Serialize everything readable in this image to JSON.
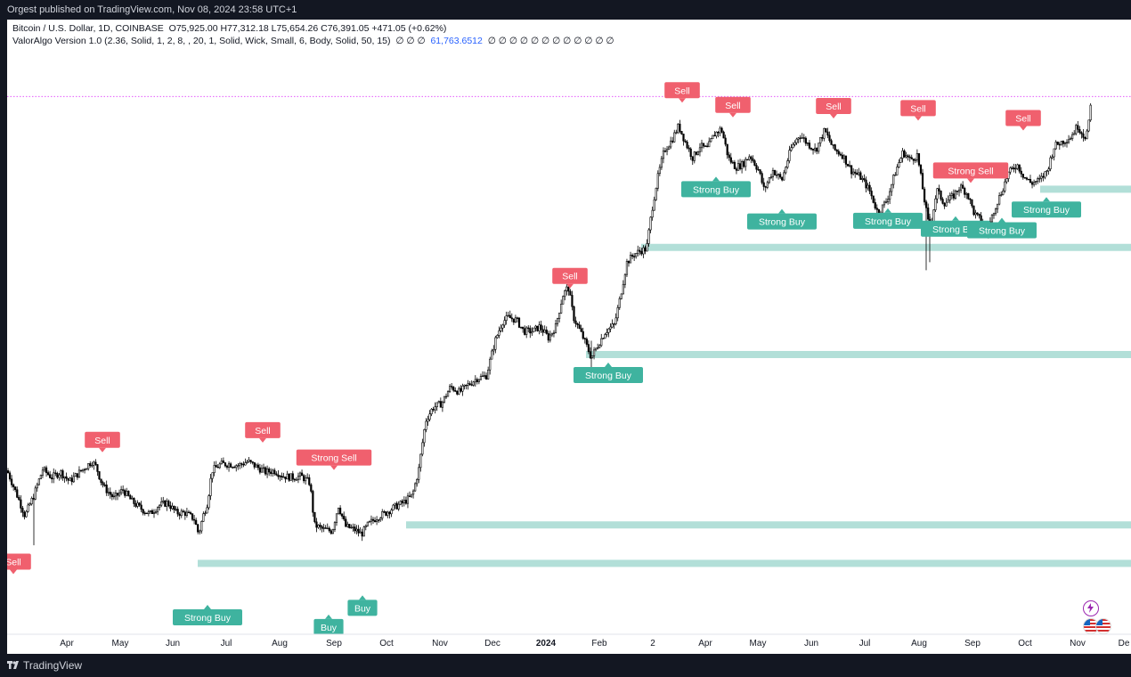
{
  "header": {
    "published": "Orgest published on TradingView.com, Nov 08, 2024 23:58 UTC+1"
  },
  "legend": {
    "symbol": "Bitcoin / U.S. Dollar, 1D, COINBASE",
    "ohlc": "O75,925.00  H77,312.18  L75,654.26  C76,391.05  +471.05 (+0.62%)",
    "indicator": "ValorAlgo Version 1.0 (2.36, Solid, 1, 2, 8, , 20, 1, Solid, Wick, Small, 6, Body, Solid, 50, 15)",
    "null_prefix": "∅ ∅ ∅",
    "indicator_value": "61,763.6512",
    "null_suffix": "∅ ∅ ∅ ∅ ∅ ∅ ∅ ∅ ∅ ∅ ∅ ∅"
  },
  "footer": {
    "brand": "TradingView"
  },
  "colors": {
    "up_candle": "#000000",
    "sell": "#f0606e",
    "buy": "#3fb39f",
    "zone": "#b2dfd8",
    "price_line": "#e040fb"
  },
  "icons": {
    "bolt": "lightning-icon",
    "flag": "us-flag-icon"
  },
  "chart_data": {
    "type": "candlestick",
    "x_ticks": [
      "Apr",
      "May",
      "Jun",
      "Jul",
      "Aug",
      "Sep",
      "Oct",
      "Nov",
      "Dec",
      "2024",
      "Feb",
      "2",
      "Apr",
      "May",
      "Jun",
      "Jul",
      "Aug",
      "Sep",
      "Oct",
      "Nov",
      "De"
    ],
    "x_tick_bold": "2024",
    "series_path": [
      [
        0,
        30000
      ],
      [
        20,
        26800
      ],
      [
        30,
        28200
      ],
      [
        40,
        30100
      ],
      [
        50,
        29500
      ],
      [
        60,
        29900
      ],
      [
        70,
        29200
      ],
      [
        80,
        29800
      ],
      [
        90,
        30400
      ],
      [
        95,
        30700
      ],
      [
        100,
        30300
      ],
      [
        105,
        29300
      ],
      [
        110,
        28700
      ],
      [
        120,
        28000
      ],
      [
        130,
        28600
      ],
      [
        140,
        27800
      ],
      [
        150,
        27300
      ],
      [
        160,
        26900
      ],
      [
        170,
        27500
      ],
      [
        180,
        27700
      ],
      [
        190,
        27000
      ],
      [
        200,
        27000
      ],
      [
        210,
        26600
      ],
      [
        215,
        25600
      ],
      [
        220,
        26800
      ],
      [
        225,
        27700
      ],
      [
        230,
        30000
      ],
      [
        240,
        30500
      ],
      [
        250,
        30500
      ],
      [
        260,
        30400
      ],
      [
        270,
        30700
      ],
      [
        280,
        30300
      ],
      [
        290,
        29900
      ],
      [
        300,
        30000
      ],
      [
        310,
        29600
      ],
      [
        320,
        29500
      ],
      [
        330,
        29600
      ],
      [
        340,
        29100
      ],
      [
        345,
        26200
      ],
      [
        355,
        25900
      ],
      [
        365,
        25800
      ],
      [
        372,
        27500
      ],
      [
        380,
        26100
      ],
      [
        390,
        25900
      ],
      [
        398,
        25600
      ],
      [
        405,
        26200
      ],
      [
        415,
        26700
      ],
      [
        425,
        27000
      ],
      [
        435,
        27400
      ],
      [
        445,
        27700
      ],
      [
        455,
        28200
      ],
      [
        462,
        30000
      ],
      [
        470,
        34000
      ],
      [
        478,
        35100
      ],
      [
        488,
        35500
      ],
      [
        498,
        37000
      ],
      [
        508,
        36500
      ],
      [
        518,
        37200
      ],
      [
        528,
        37800
      ],
      [
        538,
        38000
      ],
      [
        548,
        41500
      ],
      [
        556,
        43500
      ],
      [
        563,
        44000
      ],
      [
        572,
        43700
      ],
      [
        580,
        42500
      ],
      [
        590,
        42500
      ],
      [
        598,
        43000
      ],
      [
        608,
        41800
      ],
      [
        616,
        43000
      ],
      [
        624,
        46500
      ],
      [
        630,
        47500
      ],
      [
        636,
        44000
      ],
      [
        646,
        42000
      ],
      [
        656,
        39800
      ],
      [
        663,
        41000
      ],
      [
        672,
        42500
      ],
      [
        682,
        43200
      ],
      [
        688,
        46000
      ],
      [
        696,
        50500
      ],
      [
        704,
        51500
      ],
      [
        712,
        52000
      ],
      [
        718,
        52200
      ],
      [
        724,
        57500
      ],
      [
        730,
        62000
      ],
      [
        738,
        66800
      ],
      [
        746,
        68400
      ],
      [
        754,
        71000
      ],
      [
        762,
        68000
      ],
      [
        770,
        65500
      ],
      [
        778,
        67500
      ],
      [
        786,
        67000
      ],
      [
        794,
        69500
      ],
      [
        802,
        70500
      ],
      [
        810,
        65500
      ],
      [
        818,
        64000
      ],
      [
        826,
        64500
      ],
      [
        834,
        66000
      ],
      [
        844,
        63500
      ],
      [
        850,
        60500
      ],
      [
        860,
        63500
      ],
      [
        870,
        62000
      ],
      [
        880,
        67000
      ],
      [
        890,
        69500
      ],
      [
        898,
        68000
      ],
      [
        908,
        66800
      ],
      [
        918,
        70200
      ],
      [
        928,
        67000
      ],
      [
        938,
        66000
      ],
      [
        948,
        63500
      ],
      [
        958,
        62500
      ],
      [
        968,
        60500
      ],
      [
        978,
        57000
      ],
      [
        988,
        59000
      ],
      [
        998,
        63500
      ],
      [
        1006,
        66500
      ],
      [
        1014,
        65200
      ],
      [
        1022,
        66000
      ],
      [
        1030,
        59000
      ],
      [
        1036,
        54500
      ],
      [
        1044,
        60500
      ],
      [
        1052,
        58500
      ],
      [
        1062,
        59500
      ],
      [
        1070,
        61000
      ],
      [
        1078,
        60000
      ],
      [
        1086,
        57000
      ],
      [
        1094,
        56000
      ],
      [
        1100,
        54100
      ],
      [
        1108,
        57500
      ],
      [
        1116,
        60000
      ],
      [
        1124,
        63000
      ],
      [
        1134,
        64500
      ],
      [
        1142,
        62500
      ],
      [
        1150,
        61500
      ],
      [
        1160,
        62000
      ],
      [
        1168,
        63500
      ],
      [
        1176,
        67500
      ],
      [
        1184,
        68200
      ],
      [
        1194,
        69000
      ],
      [
        1202,
        71000
      ],
      [
        1210,
        69000
      ],
      [
        1214,
        70500
      ],
      [
        1218,
        76500
      ]
    ],
    "signals": [
      {
        "label": "Sell",
        "type": "sell",
        "x": 7,
        "price": 23900
      },
      {
        "label": "Sell",
        "type": "sell",
        "x": 107,
        "price": 32400
      },
      {
        "label": "Sell",
        "type": "sell",
        "x": 287,
        "price": 33200
      },
      {
        "label": "Strong Sell",
        "type": "sell",
        "x": 367,
        "price": 31000
      },
      {
        "label": "Sell",
        "type": "sell",
        "x": 632,
        "price": 48800
      },
      {
        "label": "Sell",
        "type": "sell",
        "x": 758,
        "price": 77600
      },
      {
        "label": "Sell",
        "type": "sell",
        "x": 815,
        "price": 74800
      },
      {
        "label": "Sell",
        "type": "sell",
        "x": 928,
        "price": 74600
      },
      {
        "label": "Sell",
        "type": "sell",
        "x": 1023,
        "price": 74200
      },
      {
        "label": "Strong Sell",
        "type": "sell",
        "x": 1082,
        "price": 63500
      },
      {
        "label": "Sell",
        "type": "sell",
        "x": 1141,
        "price": 72400
      },
      {
        "label": "Strong Buy",
        "type": "buy",
        "x": 225,
        "price": 20800
      },
      {
        "label": "Buy",
        "type": "buy",
        "x": 361,
        "price": 20300
      },
      {
        "label": "Buy",
        "type": "buy",
        "x": 399,
        "price": 21300
      },
      {
        "label": "Strong Buy",
        "type": "buy",
        "x": 675,
        "price": 38100
      },
      {
        "label": "Strong Buy",
        "type": "buy",
        "x": 796,
        "price": 60600
      },
      {
        "label": "Strong Buy",
        "type": "buy",
        "x": 870,
        "price": 55900
      },
      {
        "label": "Strong Buy",
        "type": "buy",
        "x": 989,
        "price": 56000
      },
      {
        "label": "Strong Buy",
        "type": "buy",
        "x": 1065,
        "price": 54900
      },
      {
        "label": "Strong Buy",
        "type": "buy",
        "x": 1117,
        "price": 54700
      },
      {
        "label": "Strong Buy",
        "type": "buy",
        "x": 1167,
        "price": 57600
      }
    ],
    "zones": [
      {
        "x_start": 214,
        "price": 23800
      },
      {
        "x_start": 448,
        "price": 26200
      },
      {
        "x_start": 650,
        "price": 40100
      },
      {
        "x_start": 712,
        "price": 52400
      },
      {
        "x_start": 1160,
        "price": 60600
      }
    ],
    "current_price": 76391.05
  }
}
